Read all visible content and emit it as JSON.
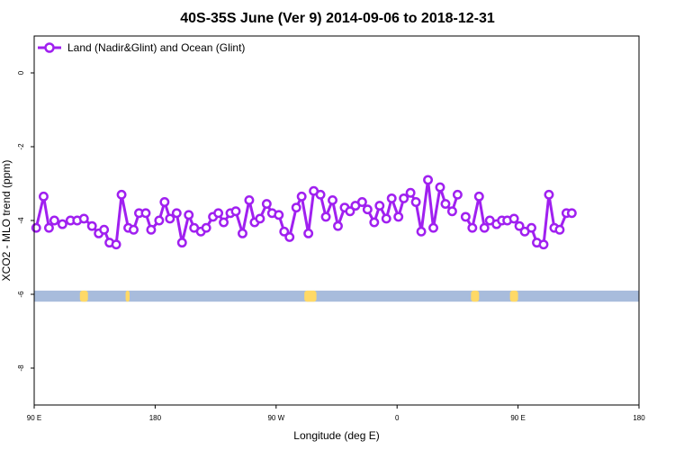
{
  "chart_data": {
    "type": "line",
    "title": "40S-35S June (Ver 9)   2014-09-06 to 2018-12-31",
    "xlabel": "Longitude (deg E)",
    "ylabel": "XCO2 - MLO trend (ppm)",
    "xlim": [
      90,
      450
    ],
    "ylim": [
      -9,
      1
    ],
    "x_ticks": [
      {
        "value": 90,
        "label": "90 E"
      },
      {
        "value": 180,
        "label": "180"
      },
      {
        "value": 270,
        "label": "90 W"
      },
      {
        "value": 360,
        "label": "0"
      },
      {
        "value": 450,
        "label": "90 E"
      },
      {
        "value": 540,
        "label": "180"
      }
    ],
    "y_ticks": [
      {
        "value": 0,
        "label": "0"
      },
      {
        "value": -2,
        "label": "-2"
      },
      {
        "value": -4,
        "label": "-4"
      },
      {
        "value": -6,
        "label": "-6"
      },
      {
        "value": -8,
        "label": "-8"
      }
    ],
    "legend": {
      "position": "top-left"
    },
    "colors": {
      "series": "#a020f0",
      "ocean_band": "#a8bcdc",
      "land_patch": "#ffd966"
    },
    "land_band": {
      "y_range": [
        -6.2,
        -5.9
      ]
    },
    "land_patches": [
      [
        124,
        130
      ],
      [
        158,
        161
      ],
      [
        291,
        300
      ],
      [
        415,
        421
      ],
      [
        444,
        450
      ]
    ],
    "series": [
      {
        "name": "Land (Nadir&Glint) and Ocean (Glint)",
        "points": [
          [
            91.5,
            -4.2
          ],
          [
            97,
            -3.35
          ],
          [
            101,
            -4.2
          ],
          [
            105,
            -4.0
          ],
          [
            111,
            -4.1
          ],
          [
            117,
            -4.0
          ],
          [
            122,
            -4.0
          ],
          [
            127,
            -3.95
          ],
          [
            133,
            -4.15
          ],
          [
            138,
            -4.35
          ],
          [
            142,
            -4.25
          ],
          [
            146,
            -4.6
          ],
          [
            151,
            -4.65
          ],
          [
            155,
            -3.3
          ],
          [
            160,
            -4.2
          ],
          [
            164,
            -4.25
          ],
          [
            168,
            -3.8
          ],
          [
            173,
            -3.8
          ],
          [
            177,
            -4.25
          ],
          [
            183,
            -4.0
          ],
          [
            187,
            -3.5
          ],
          [
            191,
            -3.95
          ],
          [
            196,
            -3.8
          ],
          [
            200,
            -4.6
          ],
          [
            205,
            -3.85
          ],
          [
            209,
            -4.2
          ],
          [
            214,
            -4.3
          ],
          [
            218,
            -4.2
          ],
          [
            223,
            -3.9
          ],
          [
            227,
            -3.8
          ],
          [
            231,
            -4.05
          ],
          [
            236,
            -3.8
          ],
          [
            240,
            -3.75
          ],
          [
            245,
            -4.35
          ],
          [
            250,
            -3.45
          ],
          [
            254,
            -4.05
          ],
          [
            258,
            -3.95
          ],
          [
            263,
            -3.55
          ],
          [
            267,
            -3.8
          ],
          [
            272,
            -3.85
          ],
          [
            276,
            -4.3
          ],
          [
            280,
            -4.45
          ],
          [
            285,
            -3.65
          ],
          [
            289,
            -3.35
          ],
          [
            294,
            -4.35
          ],
          [
            298,
            -3.2
          ],
          [
            303,
            -3.3
          ],
          [
            307,
            -3.9
          ],
          [
            312,
            -3.45
          ],
          [
            316,
            -4.15
          ],
          [
            321,
            -3.65
          ],
          [
            325,
            -3.75
          ],
          [
            329,
            -3.6
          ],
          [
            334,
            -3.5
          ],
          [
            338,
            -3.7
          ],
          [
            343,
            -4.05
          ],
          [
            347,
            -3.6
          ],
          [
            352,
            -3.95
          ],
          [
            356,
            -3.4
          ],
          [
            361,
            -3.9
          ],
          [
            365,
            -3.4
          ],
          [
            370,
            -3.25
          ],
          [
            374,
            -3.5
          ],
          [
            378,
            -4.3
          ],
          [
            383,
            -2.9
          ],
          [
            387,
            -4.2
          ],
          [
            392,
            -3.1
          ],
          [
            396,
            -3.55
          ],
          [
            401,
            -3.75
          ],
          [
            405,
            -3.3
          ]
        ]
      },
      {
        "name": "",
        "points": [
          [
            411,
            -3.9
          ],
          [
            416,
            -4.2
          ],
          [
            421,
            -3.35
          ],
          [
            425,
            -4.2
          ],
          [
            429,
            -4.0
          ],
          [
            434,
            -4.1
          ],
          [
            438,
            -4.0
          ],
          [
            442,
            -4.0
          ],
          [
            447,
            -3.95
          ],
          [
            451,
            -4.15
          ],
          [
            455,
            -4.3
          ],
          [
            460,
            -4.2
          ],
          [
            464,
            -4.6
          ],
          [
            469,
            -4.65
          ],
          [
            473,
            -3.3
          ],
          [
            477,
            -4.2
          ],
          [
            481,
            -4.25
          ],
          [
            486,
            -3.8
          ],
          [
            490,
            -3.8
          ]
        ]
      }
    ]
  }
}
